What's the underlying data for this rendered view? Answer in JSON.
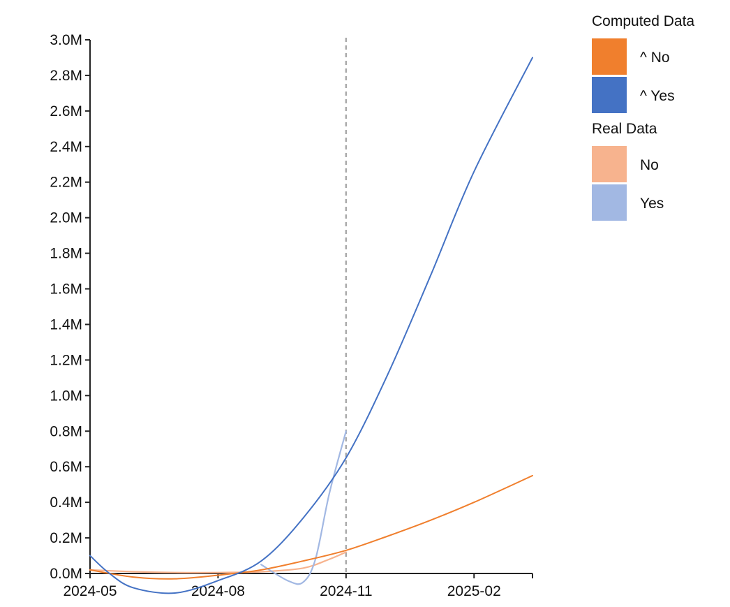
{
  "chart_data": {
    "type": "line",
    "title": "",
    "xlabel": "",
    "ylabel": "",
    "x_ticks": [
      "2024-05",
      "2024-08",
      "2024-11",
      "2025-02"
    ],
    "x_range": [
      "2024-05-01",
      "2025-03-15"
    ],
    "y_ticks": [
      "0.0M",
      "0.2M",
      "0.4M",
      "0.6M",
      "0.8M",
      "1.0M",
      "1.2M",
      "1.4M",
      "1.6M",
      "1.8M",
      "2.0M",
      "2.2M",
      "2.4M",
      "2.6M",
      "2.8M",
      "3.0M"
    ],
    "ylim": [
      0,
      3000000
    ],
    "reference_line": {
      "x": "2024-11-01",
      "style": "dashed",
      "color": "#aaaaaa"
    },
    "grid": false,
    "legend_position": "top-right",
    "legend": {
      "groups": [
        {
          "title": "Computed Data",
          "items": [
            {
              "label": "^ No",
              "color": "#f07f2d"
            },
            {
              "label": "^ Yes",
              "color": "#4472c4"
            }
          ]
        },
        {
          "title": "Real Data",
          "items": [
            {
              "label": "No",
              "color": "#f7b38e"
            },
            {
              "label": "Yes",
              "color": "#a2b8e3"
            }
          ]
        }
      ]
    },
    "series": [
      {
        "name": "^ No",
        "color": "#f07f2d",
        "x": [
          "2024-05-01",
          "2024-06-01",
          "2024-07-01",
          "2024-08-01",
          "2024-09-01",
          "2024-10-01",
          "2024-11-01",
          "2024-12-01",
          "2025-01-01",
          "2025-02-01",
          "2025-03-15"
        ],
        "values": [
          20000,
          -20000,
          -30000,
          -10000,
          20000,
          70000,
          130000,
          210000,
          300000,
          400000,
          550000
        ]
      },
      {
        "name": "^ Yes",
        "color": "#4472c4",
        "x": [
          "2024-05-01",
          "2024-05-15",
          "2024-06-01",
          "2024-07-01",
          "2024-08-01",
          "2024-09-01",
          "2024-10-01",
          "2024-11-01",
          "2024-12-01",
          "2025-01-01",
          "2025-02-01",
          "2025-03-15"
        ],
        "values": [
          100000,
          0,
          -80000,
          -110000,
          -40000,
          70000,
          310000,
          650000,
          1120000,
          1680000,
          2260000,
          2900000
        ]
      },
      {
        "name": "No",
        "color": "#f7b38e",
        "x": [
          "2024-05-01",
          "2024-06-01",
          "2024-07-01",
          "2024-08-01",
          "2024-09-01",
          "2024-10-01",
          "2024-10-20",
          "2024-11-01"
        ],
        "values": [
          20000,
          10000,
          5000,
          5000,
          10000,
          30000,
          80000,
          120000
        ]
      },
      {
        "name": "Yes",
        "color": "#a2b8e3",
        "x": [
          "2024-09-01",
          "2024-09-20",
          "2024-10-01",
          "2024-10-10",
          "2024-10-20",
          "2024-11-01"
        ],
        "values": [
          50000,
          -40000,
          -50000,
          80000,
          450000,
          800000
        ]
      }
    ]
  }
}
